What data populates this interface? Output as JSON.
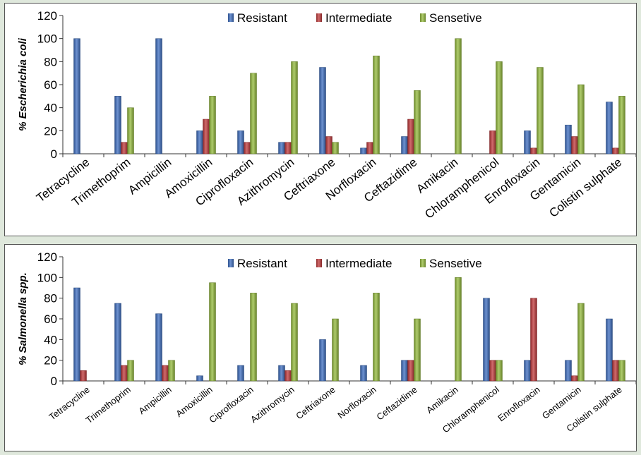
{
  "colors": {
    "resistant": "#3e6ec0",
    "intermediate": "#c0393b",
    "sensitive": "#94bb3c"
  },
  "chart_data": [
    {
      "type": "bar",
      "ylabel": "% Escherichia coli",
      "ylim": [
        0,
        120
      ],
      "yticks": [
        0,
        20,
        40,
        60,
        80,
        100,
        120
      ],
      "legend_position": "top",
      "categories": [
        "Tetracycline",
        "Trimethoprim",
        "Ampicillin",
        "Amoxicillin",
        "Ciprofloxacin",
        "Azithromycin",
        "Ceftriaxone",
        "Norfloxacin",
        "Ceftazidime",
        "Amikacin",
        "Chloramphenicol",
        "Enrofloxacin",
        "Gentamicin",
        "Colistin sulphate"
      ],
      "series": [
        {
          "name": "Resistant",
          "values": [
            100,
            50,
            100,
            20,
            20,
            10,
            75,
            5,
            15,
            0,
            0,
            20,
            25,
            45
          ]
        },
        {
          "name": "Intermediate",
          "values": [
            0,
            10,
            0,
            30,
            10,
            10,
            15,
            10,
            30,
            0,
            20,
            5,
            15,
            5
          ]
        },
        {
          "name": "Sensetive",
          "values": [
            0,
            40,
            0,
            50,
            70,
            80,
            10,
            85,
            55,
            100,
            80,
            75,
            60,
            50
          ]
        }
      ]
    },
    {
      "type": "bar",
      "ylabel": "% Salmonella spp.",
      "ylim": [
        0,
        120
      ],
      "yticks": [
        0,
        20,
        40,
        60,
        80,
        100,
        120
      ],
      "legend_position": "top",
      "categories": [
        "Tetracycline",
        "Trimethoprim",
        "Ampicillin",
        "Amoxicillin",
        "Ciprofloxacin",
        "Azithromycin",
        "Ceftriaxone",
        "Norfloxacin",
        "Ceftazidime",
        "Amikacin",
        "Chloramphenicol",
        "Enrofloxacin",
        "Gentamicin",
        "Colistin sulphate"
      ],
      "series": [
        {
          "name": "Resistant",
          "values": [
            90,
            75,
            65,
            5,
            15,
            15,
            40,
            15,
            20,
            0,
            80,
            20,
            20,
            60
          ]
        },
        {
          "name": "Intermediate",
          "values": [
            10,
            15,
            15,
            0,
            0,
            10,
            0,
            0,
            20,
            0,
            20,
            80,
            5,
            20
          ]
        },
        {
          "name": "Sensetive",
          "values": [
            0,
            20,
            20,
            95,
            85,
            75,
            60,
            85,
            60,
            100,
            20,
            0,
            75,
            20
          ]
        }
      ]
    }
  ]
}
